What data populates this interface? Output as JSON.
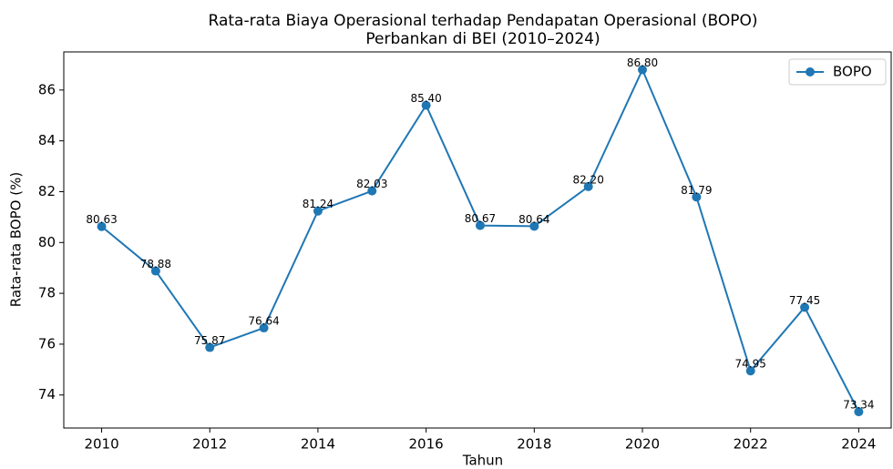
{
  "chart_data": {
    "type": "line",
    "title": [
      "Rata-rata Biaya Operasional terhadap Pendapatan Operasional (BOPO)",
      "Perbankan di BEI (2010–2024)"
    ],
    "x_label": "Tahun",
    "y_label": "Rata-rata BOPO (%)",
    "x": [
      2010,
      2011,
      2012,
      2013,
      2014,
      2015,
      2016,
      2017,
      2018,
      2019,
      2020,
      2021,
      2022,
      2023,
      2024
    ],
    "series": [
      {
        "name": "BOPO",
        "color": "#1f77b4",
        "values": [
          80.63,
          78.88,
          75.87,
          76.64,
          81.24,
          82.03,
          85.4,
          80.67,
          80.64,
          82.2,
          86.8,
          81.79,
          74.95,
          77.45,
          73.34
        ],
        "value_labels": [
          "80.63",
          "78.88",
          "75.87",
          "76.64",
          "81.24",
          "82.03",
          "85.40",
          "80.67",
          "80.64",
          "82.20",
          "86.80",
          "81.79",
          "74.95",
          "77.45",
          "73.34"
        ]
      }
    ],
    "xlim": [
      2009.3,
      2024.6
    ],
    "xticks": [
      2010,
      2012,
      2014,
      2016,
      2018,
      2020,
      2022,
      2024
    ],
    "ylim": [
      72.7,
      87.5
    ],
    "yticks": [
      74,
      76,
      78,
      80,
      82,
      84,
      86
    ],
    "legend": "upper right",
    "grid": false
  }
}
